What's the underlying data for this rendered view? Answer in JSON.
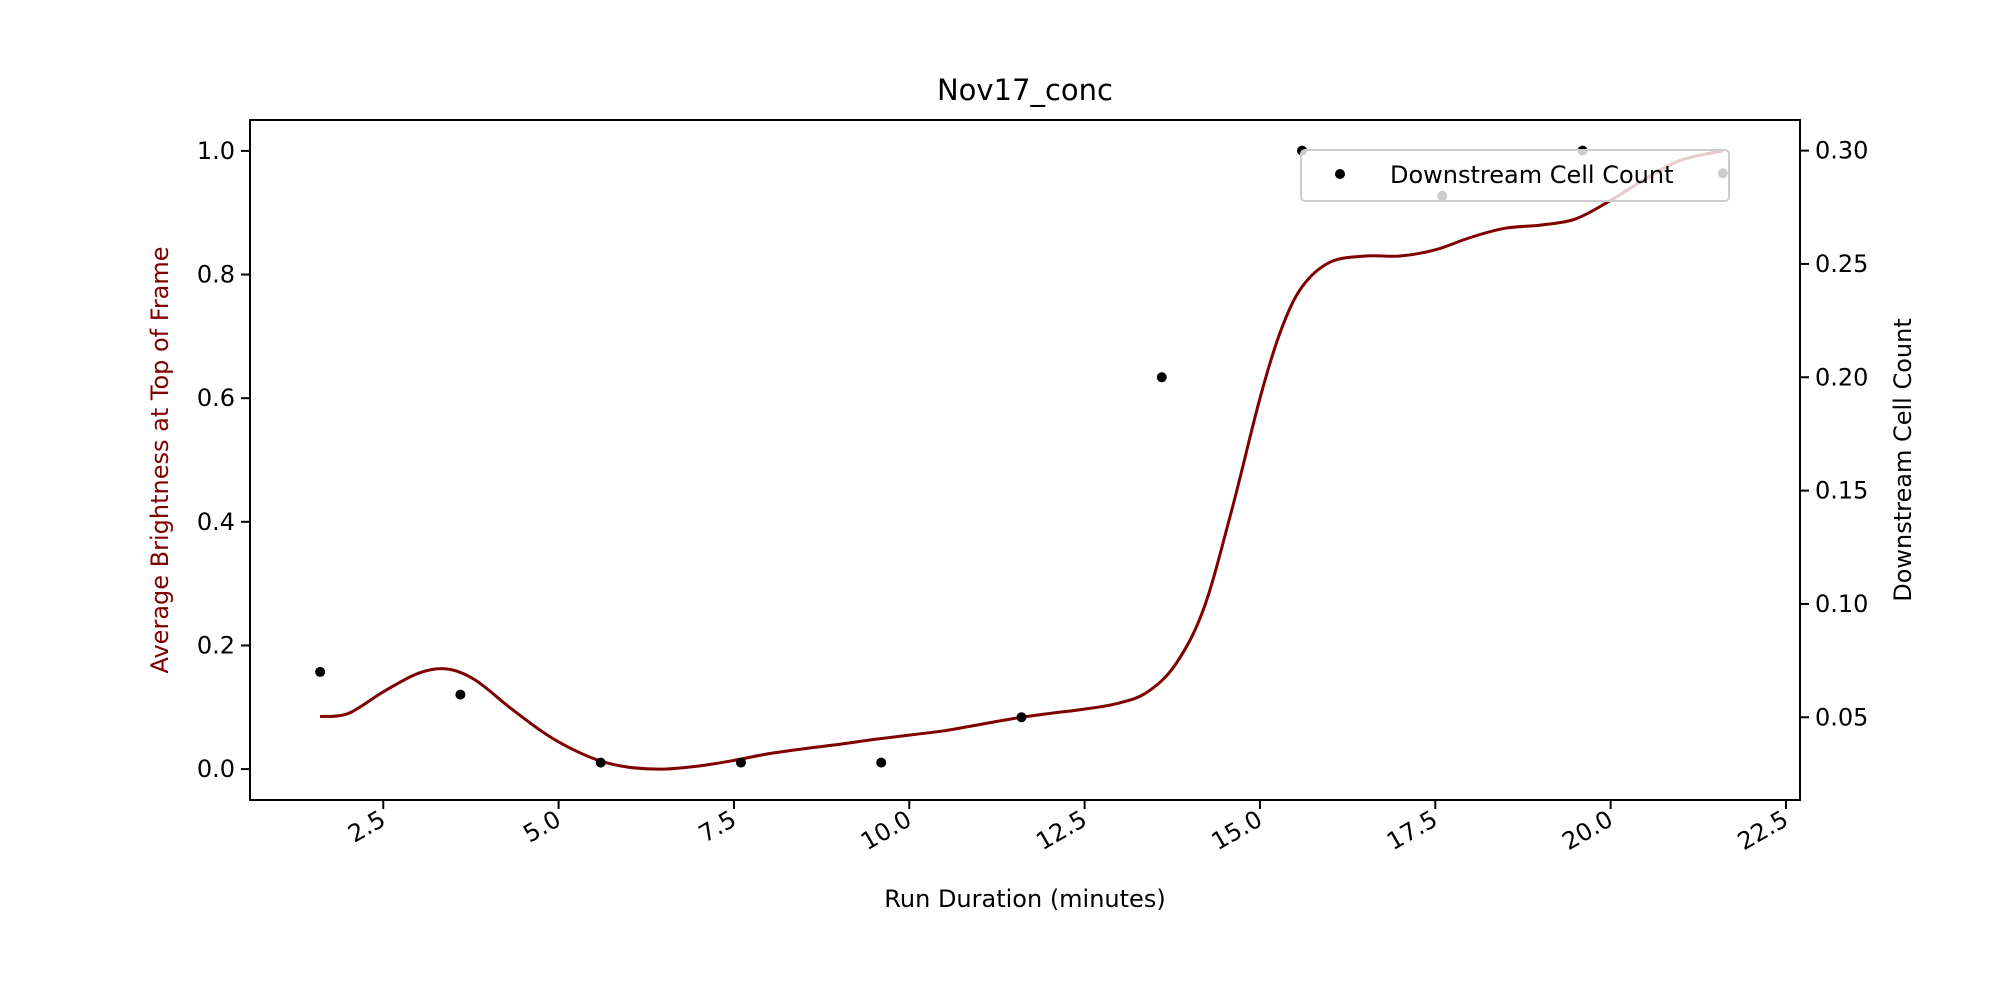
{
  "chart_data": {
    "type": "line",
    "title": "Nov17_conc",
    "xlabel": "Run Duration (minutes)",
    "ylabel_left": "Average Brightness at Top of Frame",
    "ylabel_right": "Downstream Cell Count",
    "xlim": [
      0.6,
      22.7
    ],
    "ylim_left": [
      -0.05,
      1.05
    ],
    "ylim_right": [
      0.0135,
      0.3135
    ],
    "x_ticks": [
      2.5,
      5.0,
      7.5,
      10.0,
      12.5,
      15.0,
      17.5,
      20.0,
      22.5
    ],
    "x_tick_labels": [
      "2.5",
      "5.0",
      "7.5",
      "10.0",
      "12.5",
      "15.0",
      "17.5",
      "20.0",
      "22.5"
    ],
    "y_left_ticks": [
      0.0,
      0.2,
      0.4,
      0.6,
      0.8,
      1.0
    ],
    "y_left_tick_labels": [
      "0.0",
      "0.2",
      "0.4",
      "0.6",
      "0.8",
      "1.0"
    ],
    "y_right_ticks": [
      0.05,
      0.1,
      0.15,
      0.2,
      0.25,
      0.3
    ],
    "y_right_tick_labels": [
      "0.05",
      "0.10",
      "0.15",
      "0.20",
      "0.25",
      "0.30"
    ],
    "grid": false,
    "legend_position": "top-right",
    "series": [
      {
        "name": "",
        "axis": "left",
        "kind": "line",
        "color": "#800000",
        "x": [
          1.6,
          2.0,
          2.5,
          3.0,
          3.4,
          3.8,
          4.3,
          4.8,
          5.2,
          5.6,
          6.0,
          6.5,
          7.0,
          7.5,
          8.0,
          8.5,
          9.0,
          9.5,
          10.0,
          10.5,
          11.0,
          11.5,
          12.0,
          12.5,
          13.0,
          13.4,
          13.8,
          14.2,
          14.6,
          15.0,
          15.3,
          15.6,
          16.0,
          16.5,
          17.0,
          17.5,
          18.0,
          18.5,
          19.0,
          19.5,
          20.0,
          20.5,
          21.0,
          21.6
        ],
        "y": [
          0.085,
          0.09,
          0.125,
          0.155,
          0.162,
          0.145,
          0.1,
          0.058,
          0.032,
          0.013,
          0.003,
          0.0,
          0.005,
          0.014,
          0.025,
          0.033,
          0.04,
          0.048,
          0.055,
          0.062,
          0.072,
          0.082,
          0.09,
          0.097,
          0.107,
          0.125,
          0.17,
          0.26,
          0.42,
          0.6,
          0.71,
          0.78,
          0.82,
          0.83,
          0.83,
          0.84,
          0.86,
          0.875,
          0.88,
          0.89,
          0.92,
          0.955,
          0.985,
          1.0
        ]
      },
      {
        "name": "Downstream Cell Count",
        "axis": "right",
        "kind": "scatter",
        "color": "#000000",
        "x": [
          1.6,
          3.6,
          5.6,
          7.6,
          9.6,
          11.6,
          13.6,
          15.6,
          17.6,
          19.6,
          21.6
        ],
        "y": [
          0.07,
          0.06,
          0.03,
          0.03,
          0.03,
          0.05,
          0.2,
          0.3,
          0.28,
          0.3,
          0.29
        ]
      }
    ],
    "colors": {
      "line": "#800000",
      "left_axis_label": "#800000",
      "points": "#000000"
    }
  }
}
